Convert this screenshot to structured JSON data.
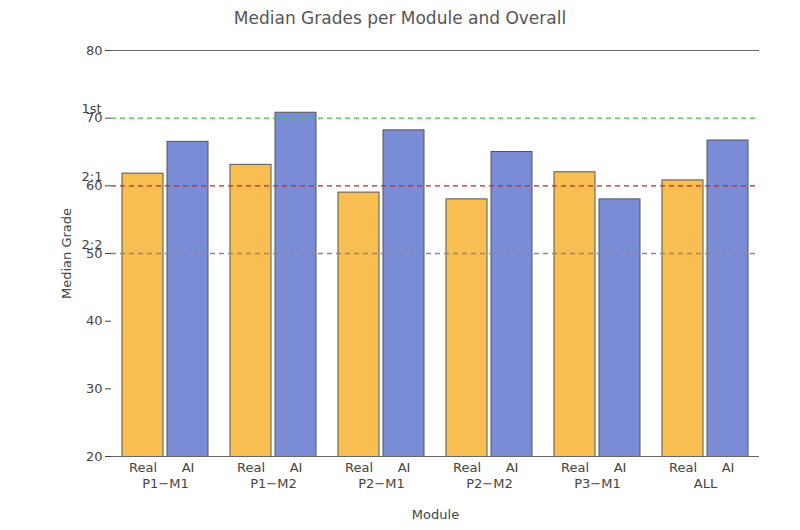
{
  "chart_data": {
    "type": "bar",
    "title": "Median Grades per Module and Overall",
    "x_label": "Module",
    "y_label": "Median Grade",
    "categories": [
      "P1−M1",
      "P1−M2",
      "P2−M1",
      "P2−M2",
      "P3−M1",
      "ALL"
    ],
    "series": [
      {
        "name": "Real",
        "color": "#F9BE52",
        "values": [
          61.8,
          63.1,
          59.0,
          58.0,
          62.0,
          60.8
        ]
      },
      {
        "name": "AI",
        "color": "#7B8CD6",
        "values": [
          66.5,
          70.8,
          68.2,
          65.0,
          58.0,
          66.7
        ]
      }
    ],
    "ylim": [
      20,
      80
    ],
    "yticks": [
      20,
      30,
      40,
      50,
      60,
      70,
      80
    ],
    "grid": false,
    "reference_lines": [
      {
        "value": 70,
        "label": "1st",
        "color": "#33cc33"
      },
      {
        "value": 60,
        "label": "2:1",
        "color": "#cc2222"
      },
      {
        "value": 50,
        "label": "2:2",
        "color": "#888888"
      }
    ]
  }
}
